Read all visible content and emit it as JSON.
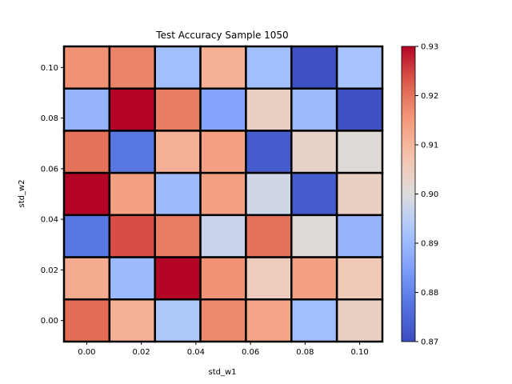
{
  "chart_data": {
    "type": "heatmap",
    "title": "Test Accuracy Sample 1050",
    "xlabel": "std_w1",
    "ylabel": "std_w2",
    "x_ticks": [
      "0.00",
      "0.02",
      "0.04",
      "0.06",
      "0.08",
      "0.10"
    ],
    "y_ticks": [
      "0.10",
      "0.08",
      "0.06",
      "0.04",
      "0.02",
      "0.00"
    ],
    "colorbar": {
      "cmap": "coolwarm",
      "vmin": 0.87,
      "vmax": 0.93,
      "ticks": [
        "0.93",
        "0.92",
        "0.91",
        "0.90",
        "0.89",
        "0.88",
        "0.87"
      ]
    },
    "xlim": [
      0.0,
      0.1
    ],
    "ylim": [
      0.0,
      0.1
    ],
    "values": [
      [
        0.916,
        0.918,
        0.891,
        0.911,
        0.891,
        0.871,
        0.892
      ],
      [
        0.889,
        0.93,
        0.919,
        0.886,
        0.904,
        0.89,
        0.871
      ],
      [
        0.92,
        0.878,
        0.911,
        0.914,
        0.873,
        0.903,
        0.901
      ],
      [
        0.93,
        0.914,
        0.89,
        0.914,
        0.898,
        0.873,
        0.904
      ],
      [
        0.878,
        0.924,
        0.919,
        0.897,
        0.92,
        0.901,
        0.889
      ],
      [
        0.912,
        0.89,
        0.93,
        0.916,
        0.905,
        0.914,
        0.906
      ],
      [
        0.921,
        0.911,
        0.893,
        0.917,
        0.913,
        0.891,
        0.904
      ]
    ]
  }
}
